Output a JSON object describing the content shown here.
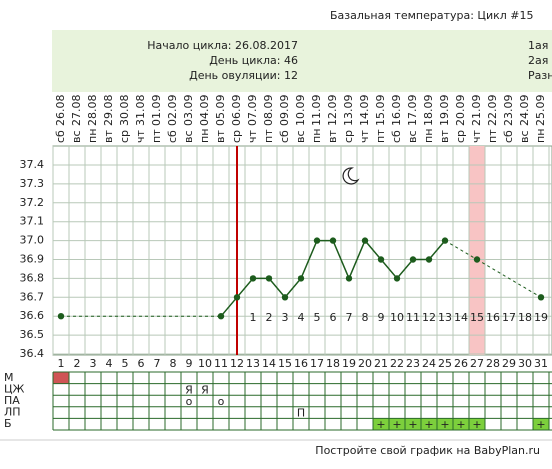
{
  "chart_data": {
    "type": "line",
    "title": "Базальная температура: Цикл #15",
    "info": [
      "Начало цикла: 26.08.2017",
      "День цикла: 46",
      "День овуляции: 12"
    ],
    "info_right": [
      "1ая",
      "2ая с",
      "Разн"
    ],
    "categories": [
      "26.08",
      "27.08",
      "28.08",
      "29.08",
      "30.08",
      "31.08",
      "01.09",
      "02.09",
      "03.09",
      "04.09",
      "05.09",
      "06.09",
      "07.09",
      "08.09",
      "09.09",
      "10.09",
      "11.09",
      "12.09",
      "13.09",
      "14.09",
      "15.09",
      "16.09",
      "17.09",
      "18.09",
      "19.09",
      "20.09",
      "21.09",
      "22.09",
      "23.09",
      "24.09",
      "25.09"
    ],
    "weekdays": [
      "сб",
      "вс",
      "пн",
      "вт",
      "ср",
      "чт",
      "пт",
      "сб",
      "вс",
      "пн",
      "вт",
      "ср",
      "чт",
      "пт",
      "сб",
      "вс",
      "пн",
      "вт",
      "ср",
      "чт",
      "пт",
      "сб",
      "вс",
      "пн",
      "вт",
      "ср",
      "чт",
      "пт",
      "сб",
      "вс",
      "пн"
    ],
    "cycle_days": [
      1,
      2,
      3,
      4,
      5,
      6,
      7,
      8,
      9,
      10,
      11,
      12,
      13,
      14,
      15,
      16,
      17,
      18,
      19,
      20,
      21,
      22,
      23,
      24,
      25,
      26,
      27,
      28,
      29,
      30,
      31
    ],
    "post_ovulation_days": [
      null,
      null,
      null,
      null,
      null,
      null,
      null,
      null,
      null,
      null,
      null,
      null,
      1,
      2,
      3,
      4,
      5,
      6,
      7,
      8,
      9,
      10,
      11,
      12,
      13,
      14,
      15,
      16,
      17,
      18,
      19
    ],
    "series": [
      {
        "name": "Температура",
        "color": "#1d5c1d",
        "values": [
          36.6,
          null,
          null,
          null,
          null,
          null,
          null,
          null,
          null,
          null,
          36.6,
          36.7,
          36.8,
          36.8,
          36.7,
          36.8,
          37.0,
          37.0,
          36.8,
          37.0,
          36.9,
          36.8,
          36.9,
          36.9,
          37.0,
          null,
          36.9,
          null,
          null,
          null,
          36.7
        ]
      }
    ],
    "ylim": [
      36.4,
      37.4
    ],
    "yticks": [
      36.4,
      36.5,
      36.6,
      36.7,
      36.8,
      36.9,
      {
        "value": 37,
        "label": "37.0"
      },
      37.1,
      37.2,
      37.3,
      37.4
    ],
    "ovulation_day": 12,
    "highlight_day": 27,
    "rows": [
      {
        "label": "М",
        "fill": "#cf5555",
        "filled_days": [
          1
        ],
        "cells": []
      },
      {
        "label": "ЦЖ",
        "cells": [
          null,
          null,
          null,
          null,
          null,
          null,
          null,
          null,
          "Я",
          "Я"
        ]
      },
      {
        "label": "ПА",
        "text_color": "#cc3333",
        "cells": [
          null,
          null,
          null,
          null,
          null,
          null,
          null,
          null,
          "о",
          null,
          "о"
        ]
      },
      {
        "label": "ЛП",
        "cells": [
          null,
          null,
          null,
          null,
          null,
          null,
          null,
          null,
          null,
          null,
          null,
          null,
          null,
          null,
          null,
          "П"
        ]
      },
      {
        "label": "Б",
        "fill": "#7ccf3c",
        "filled_days": [
          21,
          22,
          23,
          24,
          25,
          26,
          27,
          31
        ],
        "text_color": "#d42020",
        "cells": [
          null,
          null,
          null,
          null,
          null,
          null,
          null,
          null,
          null,
          null,
          null,
          null,
          null,
          null,
          null,
          null,
          null,
          null,
          null,
          null,
          "+",
          "+",
          "+",
          "+",
          "+",
          "+",
          "+",
          null,
          null,
          null,
          "+"
        ]
      }
    ],
    "footer": "Постройте свой график на BabyPlan.ru"
  }
}
